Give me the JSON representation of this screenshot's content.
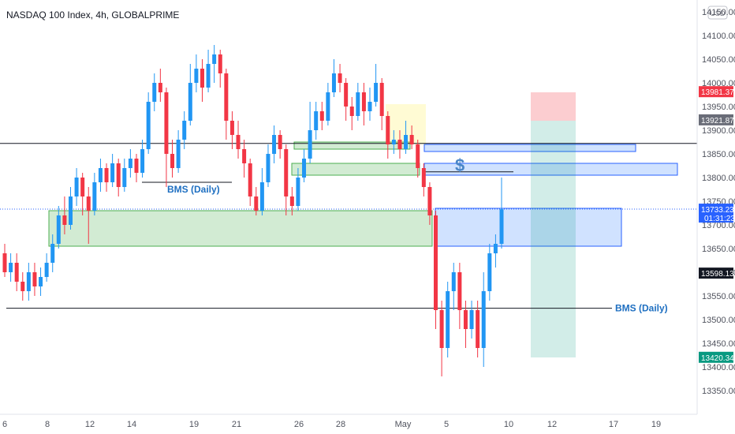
{
  "header": {
    "title": "NASDAQ 100 Index, 4h, GLOBALPRIME"
  },
  "currency": "USD",
  "chart_data": {
    "type": "candlestick",
    "ylim": [
      13300,
      14150
    ],
    "y_ticks": [
      13350,
      13400,
      13450,
      13500,
      13550,
      13600,
      13650,
      13700,
      13750,
      13800,
      13850,
      13900,
      13950,
      14000,
      14050,
      14100,
      14150
    ],
    "x_tick_labels": [
      "6",
      "8",
      "12",
      "14",
      "19",
      "21",
      "26",
      "28",
      "May",
      "5",
      "10",
      "12",
      "17",
      "19"
    ],
    "price_tags": [
      {
        "label": "13981.37",
        "value": 13981.37,
        "color": "#f23645"
      },
      {
        "label": "13921.87",
        "value": 13921.87,
        "color": "#6a6d78"
      },
      {
        "label": "13733.23",
        "value": 13733.23,
        "color": "#2962ff",
        "sub": "01:31:23"
      },
      {
        "label": "13598.13",
        "value": 13598.13,
        "color": "#131722"
      },
      {
        "label": "13420.34",
        "value": 13420.34,
        "color": "#089981"
      }
    ],
    "annotations": [
      {
        "text": "BMS (Daily)",
        "kind": "label"
      },
      {
        "text": "BMS (Daily)",
        "kind": "label"
      },
      {
        "text": "$",
        "kind": "label"
      }
    ],
    "candles": [
      [
        13640,
        13600,
        13660,
        13590
      ],
      [
        13600,
        13620,
        13640,
        13580
      ],
      [
        13620,
        13580,
        13640,
        13560
      ],
      [
        13580,
        13560,
        13600,
        13540
      ],
      [
        13560,
        13600,
        13620,
        13540
      ],
      [
        13600,
        13570,
        13620,
        13550
      ],
      [
        13570,
        13590,
        13610,
        13550
      ],
      [
        13590,
        13620,
        13640,
        13580
      ],
      [
        13620,
        13660,
        13680,
        13600
      ],
      [
        13660,
        13720,
        13740,
        13650
      ],
      [
        13720,
        13700,
        13760,
        13680
      ],
      [
        13700,
        13760,
        13780,
        13690
      ],
      [
        13760,
        13800,
        13820,
        13740
      ],
      [
        13800,
        13760,
        13810,
        13720
      ],
      [
        13760,
        13730,
        13780,
        13660
      ],
      [
        13730,
        13790,
        13810,
        13720
      ],
      [
        13790,
        13820,
        13840,
        13770
      ],
      [
        13820,
        13790,
        13830,
        13770
      ],
      [
        13790,
        13830,
        13850,
        13780
      ],
      [
        13830,
        13780,
        13840,
        13760
      ],
      [
        13780,
        13820,
        13840,
        13770
      ],
      [
        13820,
        13840,
        13860,
        13800
      ],
      [
        13840,
        13810,
        13850,
        13790
      ],
      [
        13810,
        13860,
        13880,
        13800
      ],
      [
        13860,
        13960,
        13980,
        13850
      ],
      [
        13960,
        14000,
        14020,
        13940
      ],
      [
        14000,
        13980,
        14030,
        13960
      ],
      [
        13980,
        13850,
        13990,
        13780
      ],
      [
        13850,
        13820,
        13880,
        13800
      ],
      [
        13820,
        13880,
        13900,
        13810
      ],
      [
        13880,
        13920,
        13940,
        13860
      ],
      [
        13920,
        14000,
        14040,
        13910
      ],
      [
        14000,
        14030,
        14060,
        13980
      ],
      [
        14030,
        13990,
        14050,
        13960
      ],
      [
        13990,
        14040,
        14070,
        13980
      ],
      [
        14040,
        14060,
        14080,
        14000
      ],
      [
        14060,
        14020,
        14070,
        13990
      ],
      [
        14020,
        13920,
        14030,
        13880
      ],
      [
        13920,
        13890,
        13940,
        13860
      ],
      [
        13890,
        13860,
        13920,
        13840
      ],
      [
        13860,
        13830,
        13880,
        13800
      ],
      [
        13830,
        13760,
        13840,
        13740
      ],
      [
        13760,
        13730,
        13780,
        13720
      ],
      [
        13730,
        13790,
        13820,
        13720
      ],
      [
        13790,
        13850,
        13870,
        13780
      ],
      [
        13850,
        13890,
        13910,
        13830
      ],
      [
        13890,
        13860,
        13900,
        13840
      ],
      [
        13860,
        13760,
        13870,
        13720
      ],
      [
        13760,
        13740,
        13780,
        13720
      ],
      [
        13740,
        13800,
        13820,
        13730
      ],
      [
        13800,
        13840,
        13860,
        13790
      ],
      [
        13840,
        13900,
        13960,
        13830
      ],
      [
        13900,
        13940,
        13960,
        13880
      ],
      [
        13940,
        13920,
        13960,
        13900
      ],
      [
        13920,
        13980,
        14000,
        13910
      ],
      [
        13980,
        14020,
        14050,
        13970
      ],
      [
        14020,
        14000,
        14040,
        13980
      ],
      [
        14000,
        13950,
        14010,
        13920
      ],
      [
        13950,
        13930,
        13970,
        13900
      ],
      [
        13930,
        13980,
        14000,
        13920
      ],
      [
        13980,
        13940,
        14000,
        13910
      ],
      [
        13940,
        13960,
        13990,
        13920
      ],
      [
        13960,
        14000,
        14040,
        13950
      ],
      [
        14000,
        13930,
        14010,
        13900
      ],
      [
        13930,
        13870,
        13940,
        13840
      ],
      [
        13870,
        13880,
        13900,
        13850
      ],
      [
        13880,
        13860,
        13900,
        13840
      ],
      [
        13860,
        13890,
        13920,
        13850
      ],
      [
        13890,
        13870,
        13910,
        13860
      ],
      [
        13870,
        13820,
        13880,
        13800
      ],
      [
        13820,
        13780,
        13830,
        13760
      ],
      [
        13780,
        13720,
        13790,
        13700
      ],
      [
        13720,
        13520,
        13730,
        13480
      ],
      [
        13520,
        13440,
        13540,
        13380
      ],
      [
        13440,
        13560,
        13580,
        13420
      ],
      [
        13560,
        13600,
        13620,
        13520
      ],
      [
        13600,
        13520,
        13620,
        13480
      ],
      [
        13520,
        13480,
        13540,
        13440
      ],
      [
        13480,
        13520,
        13540,
        13460
      ],
      [
        13520,
        13440,
        13540,
        13420
      ],
      [
        13440,
        13560,
        13600,
        13400
      ],
      [
        13560,
        13640,
        13660,
        13540
      ],
      [
        13640,
        13660,
        13680,
        13610
      ],
      [
        13660,
        13733,
        13800,
        13650
      ]
    ],
    "zones": [
      {
        "name": "demand-zone-large",
        "color": "green",
        "y0": 13655,
        "y1": 13730
      },
      {
        "name": "demand-zone-mid",
        "color": "green",
        "y0": 13805,
        "y1": 13830
      },
      {
        "name": "demand-zone-top",
        "color": "green",
        "y0": 13860,
        "y1": 13875
      },
      {
        "name": "supply-box-top",
        "color": "blue",
        "y0": 13855,
        "y1": 13870
      },
      {
        "name": "supply-box-mid",
        "color": "blue",
        "y0": 13805,
        "y1": 13830
      },
      {
        "name": "supply-box-large",
        "color": "blue",
        "y0": 13655,
        "y1": 13735
      },
      {
        "name": "highlight-box",
        "color": "yellow",
        "y0": 13870,
        "y1": 13955
      },
      {
        "name": "stop-zone",
        "color": "red",
        "y0": 13920,
        "y1": 13980
      },
      {
        "name": "target-zone",
        "color": "teal",
        "y0": 13420,
        "y1": 13920
      }
    ],
    "lines": [
      {
        "name": "horizontal-level",
        "y": 13872
      },
      {
        "name": "bms-line-upper",
        "y": 13790
      },
      {
        "name": "bms-line-lower",
        "y": 13524
      },
      {
        "name": "dollar-line",
        "y": 13812
      },
      {
        "name": "current-price-line",
        "y": 13733.23
      }
    ]
  }
}
